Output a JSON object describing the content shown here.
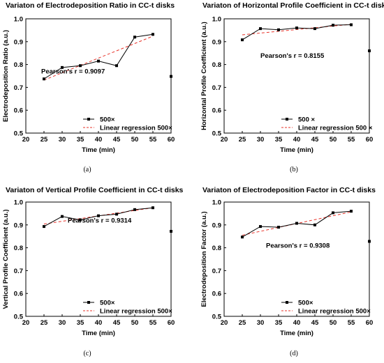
{
  "chart_data": [
    {
      "type": "line",
      "title": "Variaton of Electrodeposition Ratio in CC-t disks",
      "xlabel": "Time (min)",
      "ylabel": "Electrodeposition Ratio (a.u.)",
      "xlim": [
        20,
        60
      ],
      "ylim": [
        0.5,
        1.0
      ],
      "xticks": [
        20,
        25,
        30,
        35,
        40,
        45,
        50,
        55,
        60
      ],
      "yticks": [
        0.5,
        0.6,
        0.7,
        0.8,
        0.9,
        1.0
      ],
      "annotation": "Pearson's r = 0.9097",
      "caption": "(a)",
      "legend_position": "bottom-right",
      "series": [
        {
          "name": "500×",
          "style": "line-square",
          "color": "#000000",
          "x": [
            25,
            30,
            35,
            40,
            45,
            50,
            55
          ],
          "y": [
            0.737,
            0.787,
            0.795,
            0.815,
            0.795,
            0.92,
            0.932
          ]
        },
        {
          "name": "Linear regression 500×",
          "style": "dashed",
          "color": "#e8332a",
          "x": [
            25,
            55
          ],
          "y": [
            0.732,
            0.924
          ]
        }
      ],
      "outlier": {
        "x": 60,
        "y": 0.748
      }
    },
    {
      "type": "line",
      "title": "Variaton of Horizontal Profile Coefficient in CC-t disks",
      "xlabel": "Time (min)",
      "ylabel": "Horizontal Profile Coefficient (a.u.)",
      "xlim": [
        20,
        60
      ],
      "ylim": [
        0.5,
        1.0
      ],
      "xticks": [
        20,
        25,
        30,
        35,
        40,
        45,
        50,
        55,
        60
      ],
      "yticks": [
        0.5,
        0.6,
        0.7,
        0.8,
        0.9,
        1.0
      ],
      "annotation": "Pearson's r = 0.8155",
      "caption": "(b)",
      "legend_position": "bottom-right",
      "series": [
        {
          "name": "500 ×",
          "style": "line-square",
          "color": "#000000",
          "x": [
            25,
            30,
            35,
            40,
            45,
            50,
            55
          ],
          "y": [
            0.908,
            0.957,
            0.952,
            0.96,
            0.957,
            0.972,
            0.974
          ]
        },
        {
          "name": "Linear regression 500 ×",
          "style": "dashed",
          "color": "#e8332a",
          "x": [
            25,
            55
          ],
          "y": [
            0.93,
            0.976
          ]
        }
      ],
      "outlier": {
        "x": 60,
        "y": 0.86
      }
    },
    {
      "type": "line",
      "title": "Variaton of Vertical Profile Coefficient in CC-t disks",
      "xlabel": "Time (min)",
      "ylabel": "Vertical Profile Coefficient (a.u.)",
      "xlim": [
        20,
        60
      ],
      "ylim": [
        0.5,
        1.0
      ],
      "xticks": [
        20,
        25,
        30,
        35,
        40,
        45,
        50,
        55,
        60
      ],
      "yticks": [
        0.5,
        0.6,
        0.7,
        0.8,
        0.9,
        1.0
      ],
      "annotation": "Pearson's r = 0.9314",
      "caption": "(c)",
      "legend_position": "bottom-right",
      "series": [
        {
          "name": "500×",
          "style": "line-square",
          "color": "#000000",
          "x": [
            25,
            30,
            35,
            40,
            45,
            50,
            55
          ],
          "y": [
            0.893,
            0.937,
            0.922,
            0.94,
            0.947,
            0.967,
            0.975
          ]
        },
        {
          "name": "Linear regression 500×",
          "style": "dashed",
          "color": "#e8332a",
          "x": [
            25,
            55
          ],
          "y": [
            0.904,
            0.975
          ]
        }
      ],
      "outlier": {
        "x": 60,
        "y": 0.872
      }
    },
    {
      "type": "line",
      "title": "Variaton of Electrodeposition Factor in CC-t disks",
      "xlabel": "Time (min)",
      "ylabel": "Electrodeposition Factor (a.u.)",
      "xlim": [
        20,
        60
      ],
      "ylim": [
        0.5,
        1.0
      ],
      "xticks": [
        20,
        25,
        30,
        35,
        40,
        45,
        50,
        55,
        60
      ],
      "yticks": [
        0.5,
        0.6,
        0.7,
        0.8,
        0.9,
        1.0
      ],
      "annotation": "Pearson's r = 0.9308",
      "caption": "(d)",
      "legend_position": "bottom-right",
      "series": [
        {
          "name": "500×",
          "style": "line-square",
          "color": "#000000",
          "x": [
            25,
            30,
            35,
            40,
            45,
            50,
            55
          ],
          "y": [
            0.847,
            0.893,
            0.89,
            0.907,
            0.9,
            0.953,
            0.96
          ]
        },
        {
          "name": "Linear regression 500×",
          "style": "dashed",
          "color": "#e8332a",
          "x": [
            25,
            55
          ],
          "y": [
            0.855,
            0.957
          ]
        }
      ],
      "outlier": {
        "x": 60,
        "y": 0.828
      }
    }
  ]
}
